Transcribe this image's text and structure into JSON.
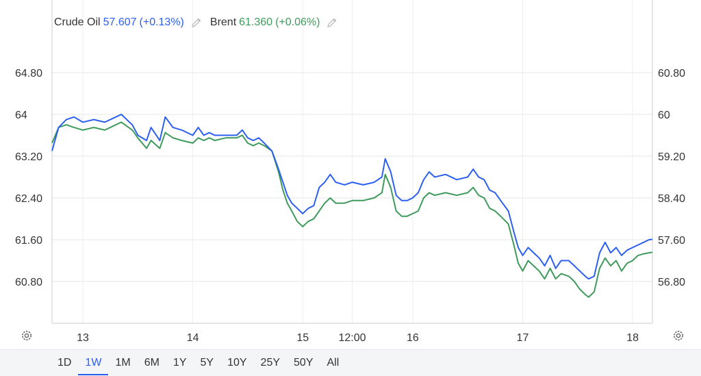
{
  "legend": {
    "series1_name": "Crude Oil",
    "series1_value": "57.607",
    "series1_change": "(+0.13%)",
    "series2_name": "Brent",
    "series2_value": "61.360",
    "series2_change": "(+0.06%)"
  },
  "range_tabs": [
    "1D",
    "1W",
    "1M",
    "6M",
    "1Y",
    "5Y",
    "10Y",
    "25Y",
    "50Y",
    "All"
  ],
  "active_range": "1W",
  "colors": {
    "crude": "#2b5ff0",
    "brent": "#3e9a5b",
    "grid": "#e6e6e6",
    "text": "#333333"
  },
  "icons": {
    "edit": "pencil-icon",
    "settings": "gear-icon"
  },
  "chart_data": {
    "type": "line",
    "left_axis": {
      "ylim": [
        60.0,
        65.6
      ],
      "ticks": [
        "64.80",
        "64",
        "63.20",
        "62.40",
        "61.60",
        "60.80"
      ],
      "tick_values": [
        64.8,
        64,
        63.2,
        62.4,
        61.6,
        60.8
      ]
    },
    "right_axis": {
      "ylim": [
        56.0,
        61.6
      ],
      "ticks": [
        "60.80",
        "60",
        "59.20",
        "58.40",
        "57.60",
        "56.80"
      ],
      "tick_values": [
        60.8,
        60,
        59.2,
        58.4,
        57.6,
        56.8
      ]
    },
    "x_axis": {
      "range": [
        12.72,
        18.18
      ],
      "ticks": [
        "13",
        "14",
        "15",
        "12:00",
        "16",
        "17",
        "18"
      ],
      "tick_values": [
        13,
        14,
        15,
        15.45,
        16,
        17,
        18
      ]
    },
    "grid": true,
    "series": [
      {
        "name": "Crude Oil",
        "axis": "right",
        "points": [
          [
            12.72,
            59.3
          ],
          [
            12.78,
            59.75
          ],
          [
            12.85,
            59.9
          ],
          [
            12.92,
            59.95
          ],
          [
            13.0,
            59.85
          ],
          [
            13.1,
            59.9
          ],
          [
            13.2,
            59.85
          ],
          [
            13.3,
            59.95
          ],
          [
            13.35,
            60.0
          ],
          [
            13.45,
            59.8
          ],
          [
            13.5,
            59.6
          ],
          [
            13.58,
            59.5
          ],
          [
            13.62,
            59.75
          ],
          [
            13.7,
            59.5
          ],
          [
            13.75,
            59.95
          ],
          [
            13.82,
            59.75
          ],
          [
            13.9,
            59.7
          ],
          [
            14.0,
            59.6
          ],
          [
            14.05,
            59.75
          ],
          [
            14.1,
            59.6
          ],
          [
            14.15,
            59.65
          ],
          [
            14.2,
            59.6
          ],
          [
            14.3,
            59.6
          ],
          [
            14.4,
            59.6
          ],
          [
            14.45,
            59.7
          ],
          [
            14.5,
            59.55
          ],
          [
            14.55,
            59.5
          ],
          [
            14.6,
            59.55
          ],
          [
            14.65,
            59.45
          ],
          [
            14.72,
            59.3
          ],
          [
            14.78,
            58.95
          ],
          [
            14.82,
            58.7
          ],
          [
            14.86,
            58.45
          ],
          [
            14.9,
            58.3
          ],
          [
            14.95,
            58.2
          ],
          [
            15.0,
            58.1
          ],
          [
            15.05,
            58.2
          ],
          [
            15.1,
            58.25
          ],
          [
            15.15,
            58.6
          ],
          [
            15.2,
            58.7
          ],
          [
            15.25,
            58.85
          ],
          [
            15.3,
            58.7
          ],
          [
            15.38,
            58.65
          ],
          [
            15.45,
            58.7
          ],
          [
            15.55,
            58.65
          ],
          [
            15.65,
            58.7
          ],
          [
            15.72,
            58.8
          ],
          [
            15.75,
            59.15
          ],
          [
            15.8,
            58.9
          ],
          [
            15.85,
            58.45
          ],
          [
            15.9,
            58.35
          ],
          [
            15.95,
            58.35
          ],
          [
            16.0,
            58.4
          ],
          [
            16.05,
            58.5
          ],
          [
            16.1,
            58.75
          ],
          [
            16.15,
            58.9
          ],
          [
            16.2,
            58.8
          ],
          [
            16.3,
            58.85
          ],
          [
            16.4,
            58.75
          ],
          [
            16.5,
            58.8
          ],
          [
            16.55,
            58.95
          ],
          [
            16.6,
            58.8
          ],
          [
            16.65,
            58.75
          ],
          [
            16.7,
            58.55
          ],
          [
            16.75,
            58.5
          ],
          [
            16.8,
            58.35
          ],
          [
            16.87,
            58.15
          ],
          [
            16.92,
            57.75
          ],
          [
            16.96,
            57.45
          ],
          [
            17.0,
            57.3
          ],
          [
            17.05,
            57.45
          ],
          [
            17.1,
            57.35
          ],
          [
            17.15,
            57.25
          ],
          [
            17.2,
            57.1
          ],
          [
            17.25,
            57.3
          ],
          [
            17.3,
            57.05
          ],
          [
            17.35,
            57.2
          ],
          [
            17.42,
            57.2
          ],
          [
            17.47,
            57.1
          ],
          [
            17.52,
            57.0
          ],
          [
            17.57,
            56.9
          ],
          [
            17.6,
            56.85
          ],
          [
            17.65,
            56.9
          ],
          [
            17.7,
            57.35
          ],
          [
            17.75,
            57.55
          ],
          [
            17.8,
            57.35
          ],
          [
            17.85,
            57.45
          ],
          [
            17.9,
            57.3
          ],
          [
            17.95,
            57.4
          ],
          [
            18.0,
            57.45
          ],
          [
            18.05,
            57.5
          ],
          [
            18.1,
            57.55
          ],
          [
            18.15,
            57.6
          ],
          [
            18.18,
            57.607
          ]
        ]
      },
      {
        "name": "Brent",
        "axis": "left",
        "points": [
          [
            12.72,
            63.45
          ],
          [
            12.78,
            63.75
          ],
          [
            12.85,
            63.8
          ],
          [
            12.92,
            63.75
          ],
          [
            13.0,
            63.7
          ],
          [
            13.1,
            63.75
          ],
          [
            13.2,
            63.7
          ],
          [
            13.3,
            63.8
          ],
          [
            13.35,
            63.85
          ],
          [
            13.45,
            63.7
          ],
          [
            13.5,
            63.55
          ],
          [
            13.58,
            63.35
          ],
          [
            13.62,
            63.5
          ],
          [
            13.7,
            63.35
          ],
          [
            13.75,
            63.65
          ],
          [
            13.82,
            63.55
          ],
          [
            13.9,
            63.5
          ],
          [
            14.0,
            63.45
          ],
          [
            14.05,
            63.55
          ],
          [
            14.1,
            63.5
          ],
          [
            14.15,
            63.55
          ],
          [
            14.2,
            63.5
          ],
          [
            14.3,
            63.55
          ],
          [
            14.4,
            63.55
          ],
          [
            14.45,
            63.6
          ],
          [
            14.5,
            63.45
          ],
          [
            14.55,
            63.4
          ],
          [
            14.6,
            63.45
          ],
          [
            14.65,
            63.4
          ],
          [
            14.72,
            63.3
          ],
          [
            14.78,
            62.9
          ],
          [
            14.82,
            62.55
          ],
          [
            14.86,
            62.3
          ],
          [
            14.9,
            62.15
          ],
          [
            14.95,
            61.95
          ],
          [
            15.0,
            61.85
          ],
          [
            15.05,
            61.95
          ],
          [
            15.1,
            62.0
          ],
          [
            15.15,
            62.15
          ],
          [
            15.2,
            62.3
          ],
          [
            15.25,
            62.4
          ],
          [
            15.3,
            62.3
          ],
          [
            15.38,
            62.3
          ],
          [
            15.45,
            62.35
          ],
          [
            15.55,
            62.35
          ],
          [
            15.65,
            62.4
          ],
          [
            15.72,
            62.5
          ],
          [
            15.75,
            62.85
          ],
          [
            15.8,
            62.6
          ],
          [
            15.85,
            62.15
          ],
          [
            15.9,
            62.05
          ],
          [
            15.95,
            62.05
          ],
          [
            16.0,
            62.1
          ],
          [
            16.05,
            62.15
          ],
          [
            16.1,
            62.4
          ],
          [
            16.15,
            62.5
          ],
          [
            16.2,
            62.45
          ],
          [
            16.3,
            62.5
          ],
          [
            16.4,
            62.45
          ],
          [
            16.5,
            62.5
          ],
          [
            16.55,
            62.6
          ],
          [
            16.6,
            62.45
          ],
          [
            16.65,
            62.4
          ],
          [
            16.7,
            62.2
          ],
          [
            16.75,
            62.15
          ],
          [
            16.8,
            62.05
          ],
          [
            16.87,
            61.9
          ],
          [
            16.92,
            61.5
          ],
          [
            16.96,
            61.15
          ],
          [
            17.0,
            61.0
          ],
          [
            17.05,
            61.2
          ],
          [
            17.1,
            61.1
          ],
          [
            17.15,
            61.0
          ],
          [
            17.2,
            60.85
          ],
          [
            17.25,
            61.05
          ],
          [
            17.3,
            60.85
          ],
          [
            17.35,
            60.95
          ],
          [
            17.42,
            60.9
          ],
          [
            17.47,
            60.8
          ],
          [
            17.52,
            60.65
          ],
          [
            17.57,
            60.55
          ],
          [
            17.6,
            60.5
          ],
          [
            17.65,
            60.6
          ],
          [
            17.7,
            61.05
          ],
          [
            17.75,
            61.25
          ],
          [
            17.8,
            61.1
          ],
          [
            17.85,
            61.2
          ],
          [
            17.9,
            61.0
          ],
          [
            17.95,
            61.15
          ],
          [
            18.0,
            61.2
          ],
          [
            18.05,
            61.3
          ],
          [
            18.1,
            61.33
          ],
          [
            18.15,
            61.35
          ],
          [
            18.18,
            61.36
          ]
        ]
      }
    ]
  }
}
